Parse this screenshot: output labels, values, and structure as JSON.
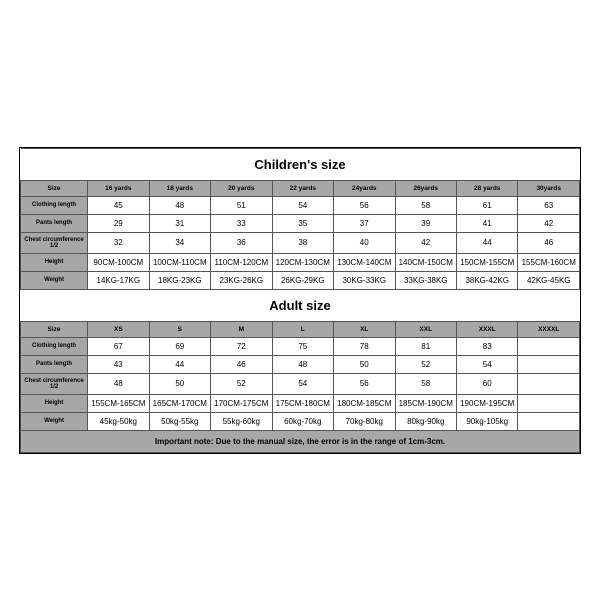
{
  "children": {
    "title": "Children's size",
    "columns": [
      "Size",
      "16 yards",
      "18 yards",
      "20 yards",
      "22 yards",
      "24yards",
      "26yards",
      "28 yards",
      "30yards"
    ],
    "rows": [
      {
        "label": "Clothing length",
        "cells": [
          "45",
          "48",
          "51",
          "54",
          "56",
          "58",
          "61",
          "63"
        ]
      },
      {
        "label": "Pants length",
        "cells": [
          "29",
          "31",
          "33",
          "35",
          "37",
          "39",
          "41",
          "42"
        ]
      },
      {
        "label": "Chest circumference 1/2",
        "cells": [
          "32",
          "34",
          "36",
          "38",
          "40",
          "42",
          "44",
          "46"
        ]
      },
      {
        "label": "Height",
        "cells": [
          "90CM-100CM",
          "100CM-110CM",
          "110CM-120CM",
          "120CM-130CM",
          "130CM-140CM",
          "140CM-150CM",
          "150CM-155CM",
          "155CM-160CM"
        ]
      },
      {
        "label": "Weight",
        "cells": [
          "14KG-17KG",
          "18KG-23KG",
          "23KG-26KG",
          "26KG-29KG",
          "30KG-33KG",
          "33KG-38KG",
          "38KG-42KG",
          "42KG-45KG"
        ]
      }
    ]
  },
  "adult": {
    "title": "Adult size",
    "columns": [
      "Size",
      "XS",
      "S",
      "M",
      "L",
      "XL",
      "XXL",
      "XXXL",
      "XXXXL"
    ],
    "rows": [
      {
        "label": "Clothing length",
        "cells": [
          "67",
          "69",
          "72",
          "75",
          "78",
          "81",
          "83",
          ""
        ]
      },
      {
        "label": "Pants length",
        "cells": [
          "43",
          "44",
          "46",
          "48",
          "50",
          "52",
          "54",
          ""
        ]
      },
      {
        "label": "Chest circumference 1/2",
        "cells": [
          "48",
          "50",
          "52",
          "54",
          "56",
          "58",
          "60",
          ""
        ]
      },
      {
        "label": "Height",
        "cells": [
          "155CM-165CM",
          "165CM-170CM",
          "170CM-175CM",
          "175CM-180CM",
          "180CM-185CM",
          "185CM-190CM",
          "190CM-195CM",
          ""
        ]
      },
      {
        "label": "Weight",
        "cells": [
          "45kg-50kg",
          "50kg-55kg",
          "55kg-60kg",
          "60kg-70kg",
          "70kg-80kg",
          "80kg-90kg",
          "90kg-105kg",
          ""
        ]
      }
    ]
  },
  "note": "Important note: Due to the manual size, the error is in the range of 1cm-3cm.",
  "palette": {
    "header_bg": "#a7a7a7",
    "border": "#555555",
    "text": "#000000"
  }
}
